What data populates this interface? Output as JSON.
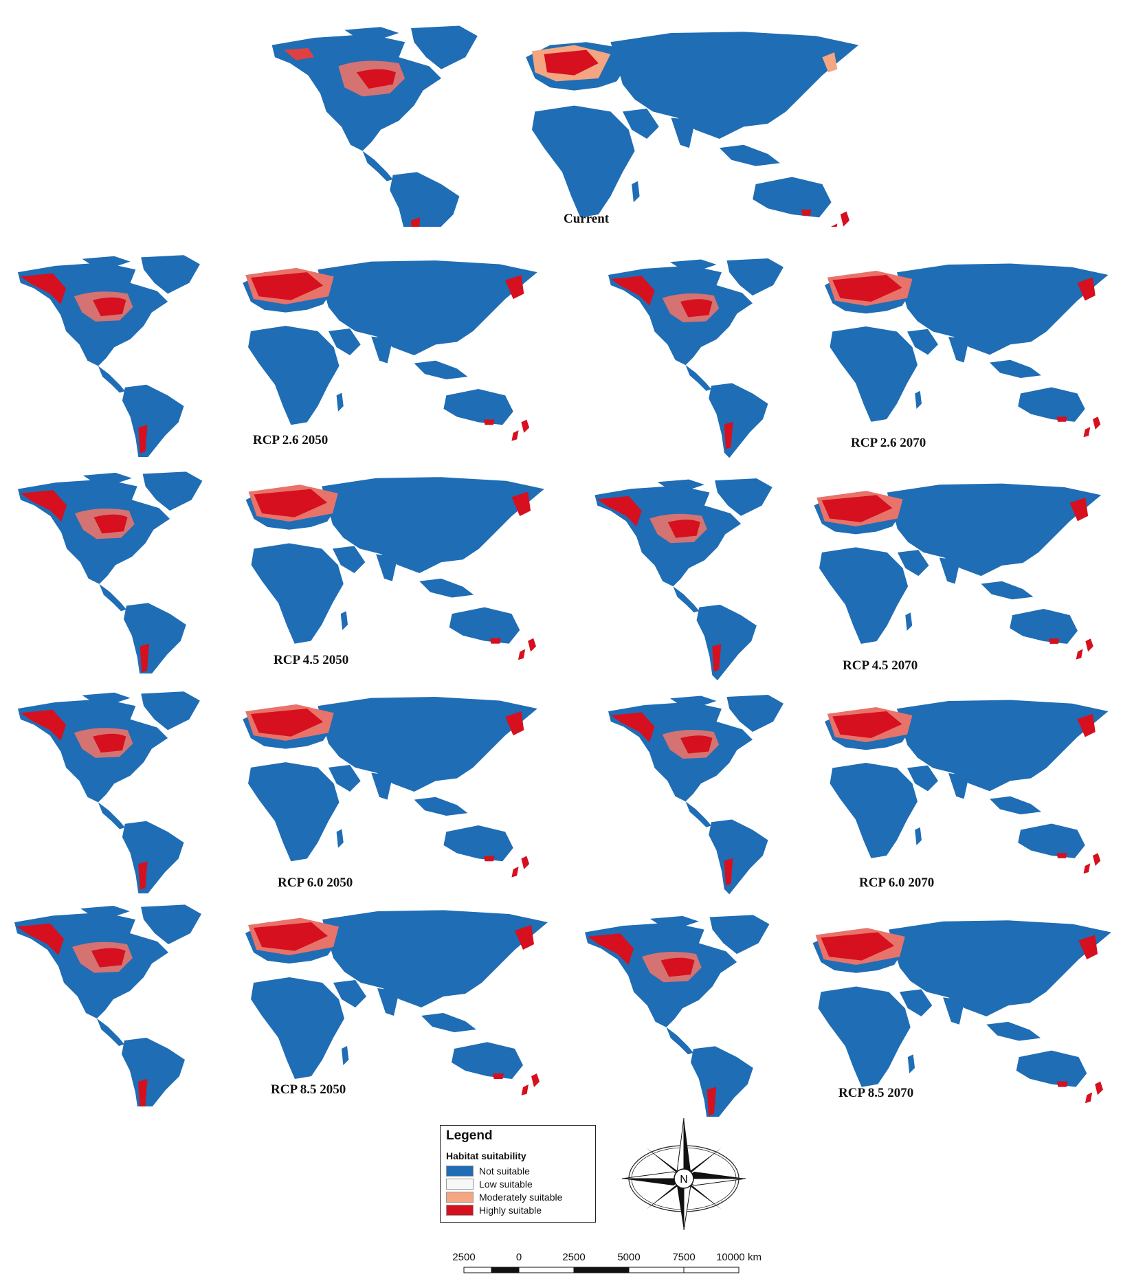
{
  "panels": [
    {
      "id": "current",
      "caption": "Current"
    },
    {
      "id": "rcp26-2050",
      "caption": "RCP 2.6 2050"
    },
    {
      "id": "rcp26-2070",
      "caption": "RCP 2.6 2070"
    },
    {
      "id": "rcp45-2050",
      "caption": "RCP 4.5 2050"
    },
    {
      "id": "rcp45-2070",
      "caption": "RCP 4.5 2070"
    },
    {
      "id": "rcp60-2050",
      "caption": "RCP 6.0 2050"
    },
    {
      "id": "rcp60-2070",
      "caption": "RCP 6.0 2070"
    },
    {
      "id": "rcp85-2050",
      "caption": "RCP 8.5 2050"
    },
    {
      "id": "rcp85-2070",
      "caption": "RCP 8.5 2070"
    }
  ],
  "legend": {
    "title": "Legend",
    "subtitle": "Habitat suitability",
    "items": [
      {
        "label": "Not suitable",
        "color": "#1f6db5"
      },
      {
        "label": "Low suitable",
        "color": "#f7f7f7"
      },
      {
        "label": "Moderately suitable",
        "color": "#f4a582"
      },
      {
        "label": "Highly suitable",
        "color": "#d6101e"
      }
    ]
  },
  "compass": {
    "label": "N"
  },
  "scale_bar": {
    "ticks": [
      "2500",
      "0",
      "2500",
      "5000",
      "7500",
      "10000 km"
    ]
  }
}
